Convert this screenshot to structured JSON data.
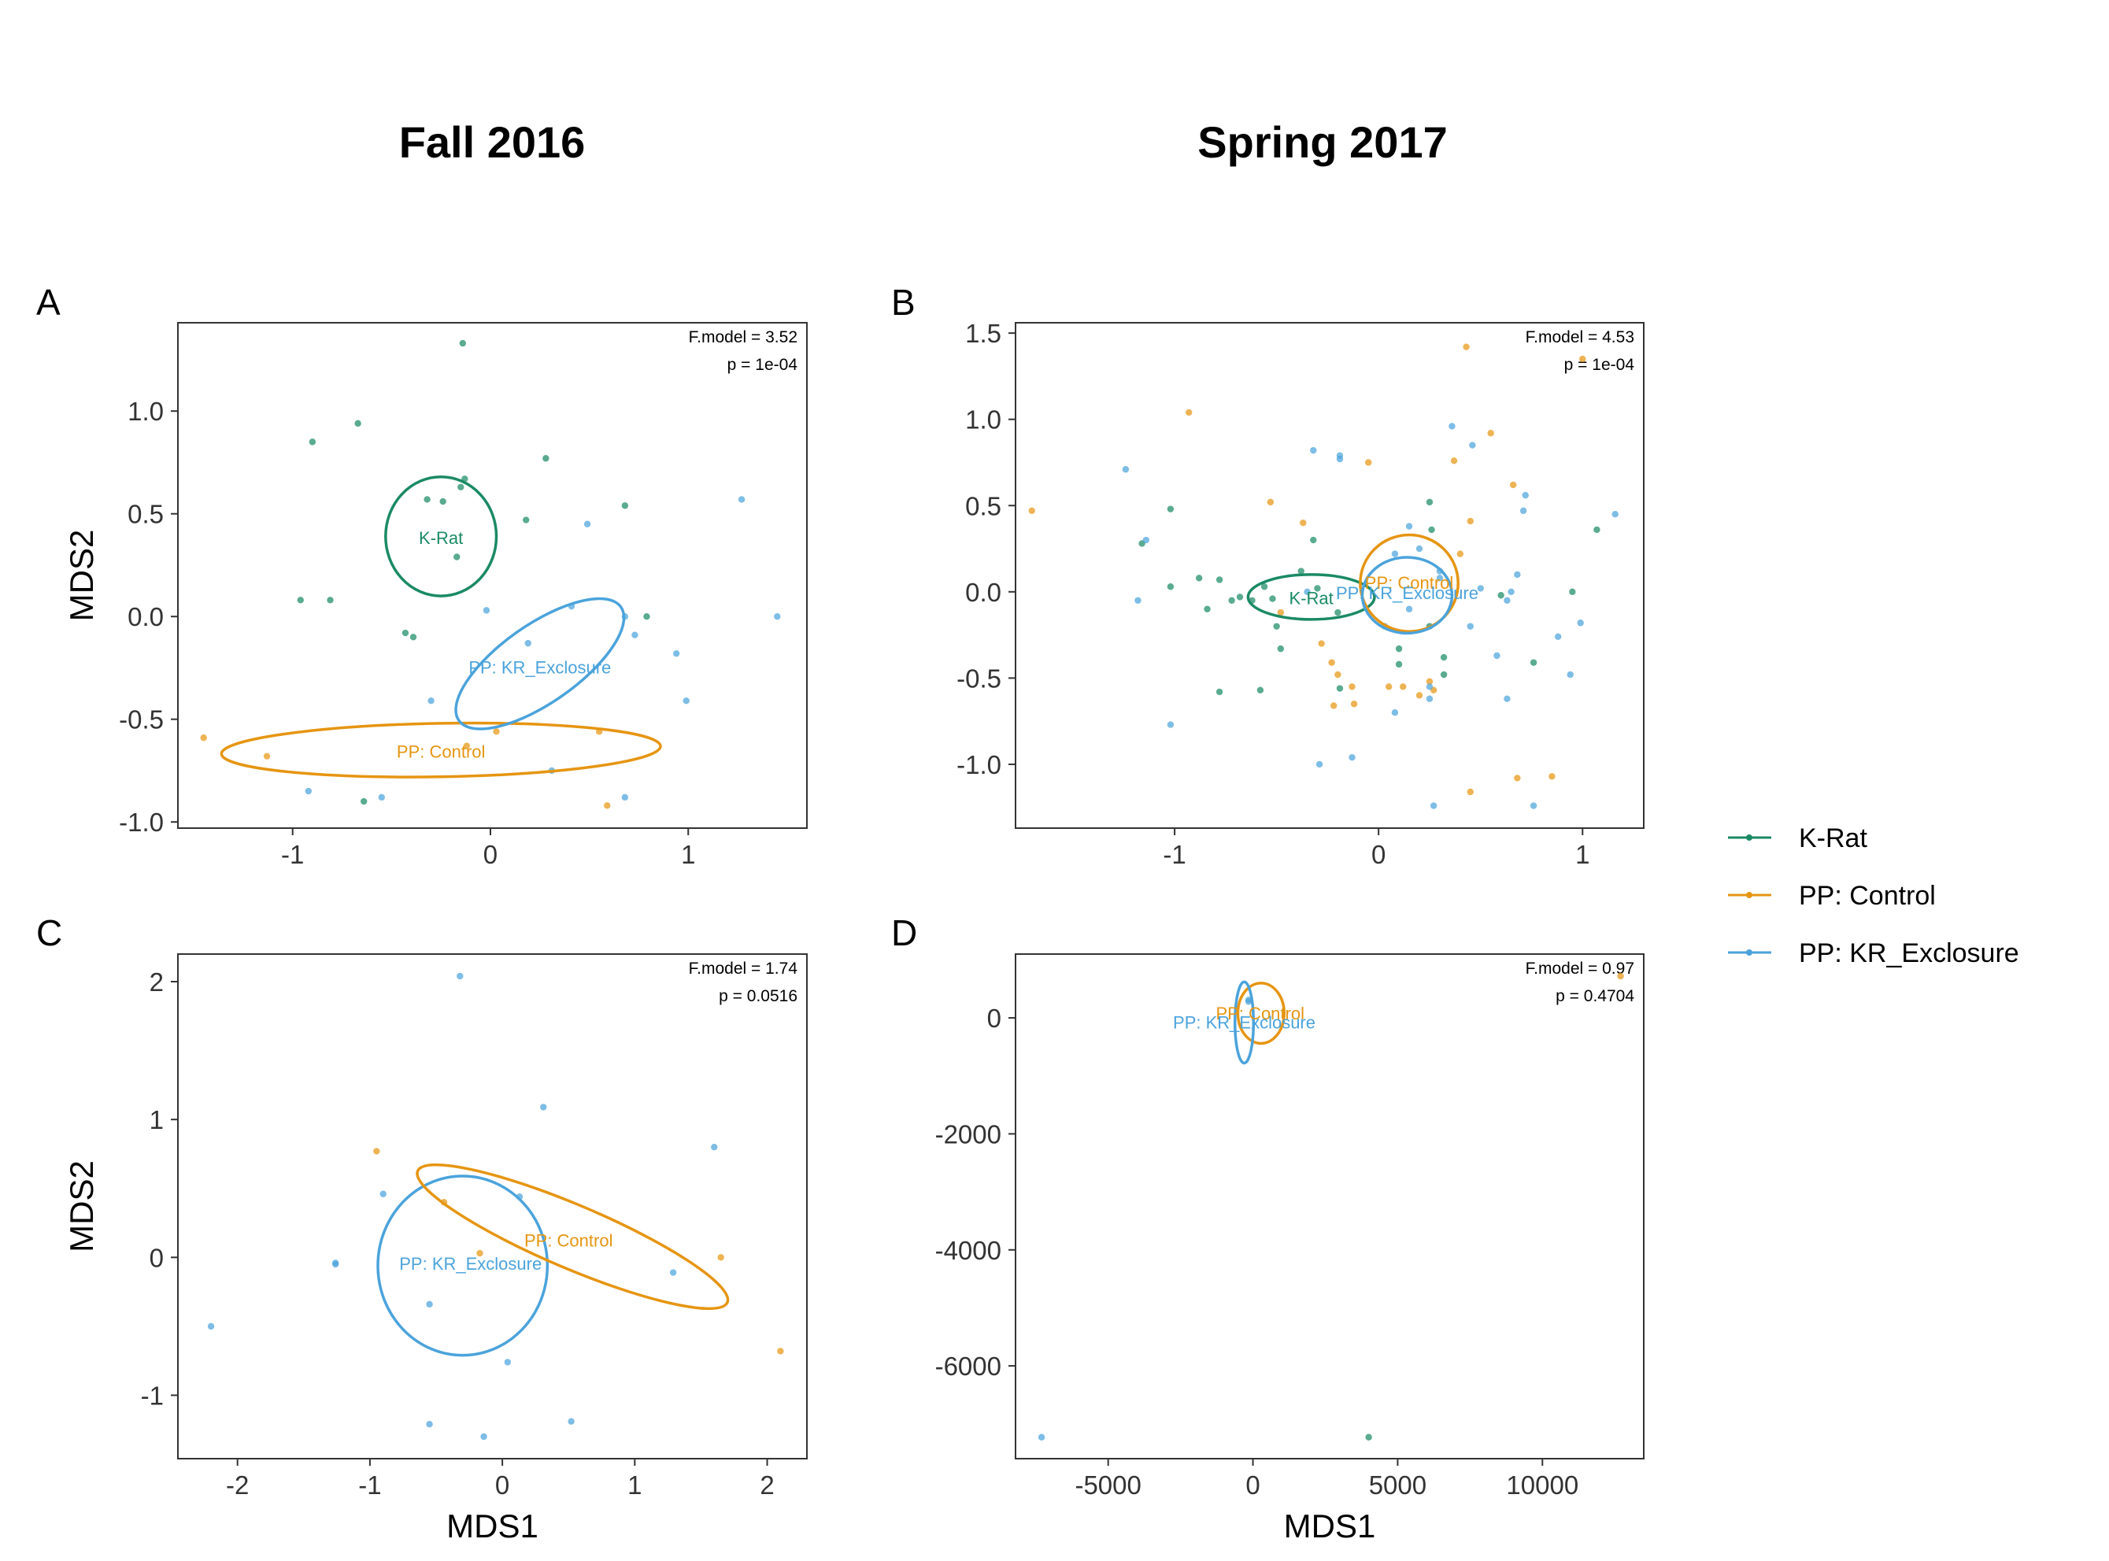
{
  "figure": {
    "column_titles": [
      "Fall 2016",
      "Spring 2017"
    ],
    "colors": {
      "K-Rat": "#1b8a64",
      "PP: Control": "#e69512",
      "PP: KR_Exclosure": "#4ba3dc"
    },
    "legend": [
      "K-Rat",
      "PP: Control",
      "PP: KR_Exclosure"
    ]
  },
  "chart_data": [
    {
      "panel": "A",
      "type": "scatter",
      "column": 0,
      "row": 0,
      "xlabel": "",
      "ylabel": "MDS2",
      "xlim": [
        -1.58,
        1.6
      ],
      "ylim": [
        -1.03,
        1.43
      ],
      "xticks": [
        -1,
        0,
        1
      ],
      "xtick_labels": [
        "-1",
        "0",
        "1"
      ],
      "yticks": [
        -1.0,
        -0.5,
        0.0,
        0.5,
        1.0
      ],
      "ytick_labels": [
        "-1.0",
        "-0.5",
        "0.0",
        "0.5",
        "1.0"
      ],
      "stats": [
        "F.model =  3.52",
        "p =  1e-04"
      ],
      "series": [
        {
          "name": "K-Rat",
          "points": [
            [
              -0.14,
              1.33
            ],
            [
              -0.9,
              0.85
            ],
            [
              -0.67,
              0.94
            ],
            [
              0.28,
              0.77
            ],
            [
              -0.15,
              0.63
            ],
            [
              -0.13,
              0.67
            ],
            [
              -0.32,
              0.57
            ],
            [
              -0.24,
              0.56
            ],
            [
              0.18,
              0.47
            ],
            [
              0.68,
              0.54
            ],
            [
              -0.17,
              0.29
            ],
            [
              -0.96,
              0.08
            ],
            [
              -0.81,
              0.08
            ],
            [
              -0.43,
              -0.08
            ],
            [
              -0.39,
              -0.1
            ],
            [
              0.79,
              0.0
            ],
            [
              -0.64,
              -0.9
            ]
          ]
        },
        {
          "name": "PP: Control",
          "points": [
            [
              -1.45,
              -0.59
            ],
            [
              -1.13,
              -0.68
            ],
            [
              -0.12,
              -0.63
            ],
            [
              0.03,
              -0.56
            ],
            [
              0.55,
              -0.56
            ],
            [
              0.59,
              -0.92
            ]
          ]
        },
        {
          "name": "PP: KR_Exclosure",
          "points": [
            [
              1.27,
              0.57
            ],
            [
              0.49,
              0.45
            ],
            [
              -0.02,
              0.03
            ],
            [
              0.41,
              0.05
            ],
            [
              0.68,
              0.0
            ],
            [
              0.73,
              -0.09
            ],
            [
              1.45,
              0.0
            ],
            [
              0.19,
              -0.13
            ],
            [
              0.94,
              -0.18
            ],
            [
              0.99,
              -0.41
            ],
            [
              -0.3,
              -0.41
            ],
            [
              0.31,
              -0.75
            ],
            [
              0.68,
              -0.88
            ],
            [
              -0.92,
              -0.85
            ],
            [
              -0.55,
              -0.88
            ]
          ]
        }
      ],
      "ellipses": [
        {
          "group": "K-Rat",
          "cx": -0.25,
          "cy": 0.39,
          "rx": 0.28,
          "ry": 0.29,
          "angle": 0,
          "label": "K-Rat",
          "label_at": [
            -0.25,
            0.38
          ]
        },
        {
          "group": "PP: Control",
          "cx": -0.25,
          "cy": -0.65,
          "rx": 1.11,
          "ry": 0.13,
          "angle": -1,
          "label": "PP: Control",
          "label_at": [
            -0.25,
            -0.66
          ]
        },
        {
          "group": "PP: KR_Exclosure",
          "cx": 0.25,
          "cy": -0.23,
          "rx": 0.5,
          "ry": 0.19,
          "angle": -35,
          "label": "PP: KR_Exclosure",
          "label_at": [
            0.25,
            -0.25
          ]
        }
      ]
    },
    {
      "panel": "B",
      "type": "scatter",
      "column": 1,
      "row": 0,
      "xlabel": "",
      "ylabel": "",
      "xlim": [
        -1.78,
        1.3
      ],
      "ylim": [
        -1.37,
        1.56
      ],
      "xticks": [
        -1,
        0,
        1
      ],
      "xtick_labels": [
        "-1",
        "0",
        "1"
      ],
      "yticks": [
        -1.0,
        -0.5,
        0.0,
        0.5,
        1.0,
        1.5
      ],
      "ytick_labels": [
        "-1.0",
        "-0.5",
        "0.0",
        "0.5",
        "1.0",
        "1.5"
      ],
      "stats": [
        "F.model =  4.53",
        "p =  1e-04"
      ],
      "series": [
        {
          "name": "K-Rat",
          "points": [
            [
              -1.02,
              0.48
            ],
            [
              -1.16,
              0.28
            ],
            [
              -1.02,
              0.03
            ],
            [
              -0.88,
              0.08
            ],
            [
              -0.84,
              -0.1
            ],
            [
              -0.78,
              0.07
            ],
            [
              -0.72,
              -0.05
            ],
            [
              -0.68,
              -0.03
            ],
            [
              -0.62,
              -0.05
            ],
            [
              -0.56,
              0.03
            ],
            [
              -0.52,
              -0.04
            ],
            [
              -0.5,
              -0.2
            ],
            [
              -0.48,
              -0.33
            ],
            [
              -0.38,
              0.12
            ],
            [
              -0.32,
              0.3
            ],
            [
              -0.3,
              0.02
            ],
            [
              -0.2,
              -0.12
            ],
            [
              -0.19,
              -0.56
            ],
            [
              -0.78,
              -0.58
            ],
            [
              -0.58,
              -0.57
            ],
            [
              0.25,
              0.52
            ],
            [
              0.25,
              -0.2
            ],
            [
              0.1,
              -0.33
            ],
            [
              0.1,
              -0.42
            ],
            [
              0.32,
              -0.38
            ],
            [
              0.32,
              -0.48
            ],
            [
              0.6,
              -0.02
            ],
            [
              0.76,
              -0.41
            ],
            [
              0.95,
              0.0
            ],
            [
              1.07,
              0.36
            ],
            [
              0.26,
              0.36
            ]
          ]
        },
        {
          "name": "PP: Control",
          "points": [
            [
              -1.7,
              0.47
            ],
            [
              -0.93,
              1.04
            ],
            [
              -0.53,
              0.52
            ],
            [
              -0.37,
              0.4
            ],
            [
              -0.48,
              -0.12
            ],
            [
              -0.28,
              -0.3
            ],
            [
              -0.23,
              -0.41
            ],
            [
              -0.2,
              -0.48
            ],
            [
              -0.22,
              -0.66
            ],
            [
              -0.13,
              -0.55
            ],
            [
              -0.12,
              -0.65
            ],
            [
              -0.05,
              0.75
            ],
            [
              0.05,
              -0.55
            ],
            [
              0.12,
              -0.55
            ],
            [
              0.2,
              -0.6
            ],
            [
              0.25,
              -0.52
            ],
            [
              0.27,
              -0.57
            ],
            [
              0.37,
              0.76
            ],
            [
              0.4,
              0.22
            ],
            [
              0.43,
              1.42
            ],
            [
              0.45,
              0.41
            ],
            [
              0.45,
              -1.16
            ],
            [
              0.55,
              0.92
            ],
            [
              0.66,
              0.62
            ],
            [
              0.68,
              -1.08
            ],
            [
              0.85,
              -1.07
            ],
            [
              1.0,
              1.35
            ]
          ]
        },
        {
          "name": "PP: KR_Exclosure",
          "points": [
            [
              -1.24,
              0.71
            ],
            [
              -1.18,
              -0.05
            ],
            [
              -1.14,
              0.3
            ],
            [
              -1.02,
              -0.77
            ],
            [
              -0.32,
              0.82
            ],
            [
              -0.19,
              0.79
            ],
            [
              -0.19,
              0.77
            ],
            [
              -0.29,
              -1.0
            ],
            [
              -0.13,
              -0.96
            ],
            [
              0.08,
              -0.7
            ],
            [
              0.25,
              -0.55
            ],
            [
              0.25,
              -0.62
            ],
            [
              0.36,
              0.96
            ],
            [
              0.46,
              0.85
            ],
            [
              0.15,
              0.38
            ],
            [
              0.2,
              0.25
            ],
            [
              0.3,
              0.08
            ],
            [
              0.3,
              0.12
            ],
            [
              0.5,
              0.02
            ],
            [
              0.65,
              0.0
            ],
            [
              0.63,
              -0.05
            ],
            [
              0.58,
              -0.37
            ],
            [
              0.63,
              -0.62
            ],
            [
              0.68,
              0.1
            ],
            [
              0.72,
              0.56
            ],
            [
              0.71,
              0.47
            ],
            [
              0.88,
              -0.26
            ],
            [
              0.94,
              -0.48
            ],
            [
              0.99,
              -0.18
            ],
            [
              0.76,
              -1.24
            ],
            [
              1.16,
              0.45
            ],
            [
              0.27,
              -1.24
            ],
            [
              0.03,
              -0.2
            ],
            [
              0.08,
              0.22
            ],
            [
              -0.35,
              0.0
            ],
            [
              0.45,
              -0.2
            ],
            [
              0.15,
              -0.1
            ]
          ]
        }
      ],
      "ellipses": [
        {
          "group": "K-Rat",
          "cx": -0.33,
          "cy": -0.03,
          "rx": 0.31,
          "ry": 0.13,
          "angle": 0,
          "label": "K-Rat",
          "label_at": [
            -0.33,
            -0.04
          ]
        },
        {
          "group": "PP: Control",
          "cx": 0.15,
          "cy": 0.05,
          "rx": 0.24,
          "ry": 0.28,
          "angle": 0,
          "label": "PP: Control",
          "label_at": [
            0.15,
            0.05
          ]
        },
        {
          "group": "PP: KR_Exclosure",
          "cx": 0.14,
          "cy": -0.02,
          "rx": 0.22,
          "ry": 0.22,
          "angle": 0,
          "label": "PP: KR_Exclosure",
          "label_at": [
            0.14,
            -0.01
          ]
        }
      ]
    },
    {
      "panel": "C",
      "type": "scatter",
      "column": 0,
      "row": 1,
      "xlabel": "MDS1",
      "ylabel": "MDS2",
      "xlim": [
        -2.45,
        2.3
      ],
      "ylim": [
        -1.46,
        2.2
      ],
      "xticks": [
        -2,
        -1,
        0,
        1,
        2
      ],
      "xtick_labels": [
        "-2",
        "-1",
        "0",
        "1",
        "2"
      ],
      "yticks": [
        -1,
        0,
        1,
        2
      ],
      "ytick_labels": [
        "-1",
        "0",
        "1",
        "2"
      ],
      "stats": [
        "F.model =  1.74",
        "p =  0.0516"
      ],
      "series": [
        {
          "name": "K-Rat",
          "points": []
        },
        {
          "name": "PP: Control",
          "points": [
            [
              -0.95,
              0.77
            ],
            [
              -0.44,
              0.4
            ],
            [
              -0.17,
              0.03
            ],
            [
              1.65,
              0.0
            ],
            [
              2.1,
              -0.68
            ]
          ]
        },
        {
          "name": "PP: KR_Exclosure",
          "points": [
            [
              -0.32,
              2.04
            ],
            [
              0.31,
              1.09
            ],
            [
              1.6,
              0.8
            ],
            [
              -0.9,
              0.46
            ],
            [
              0.13,
              0.44
            ],
            [
              -1.26,
              -0.04
            ],
            [
              -1.26,
              -0.05
            ],
            [
              1.29,
              -0.11
            ],
            [
              -2.2,
              -0.5
            ],
            [
              -0.55,
              -0.34
            ],
            [
              0.04,
              -0.76
            ],
            [
              -0.55,
              -1.21
            ],
            [
              -0.14,
              -1.3
            ],
            [
              0.52,
              -1.19
            ]
          ]
        }
      ],
      "ellipses": [
        {
          "group": "PP: KR_Exclosure",
          "cx": -0.3,
          "cy": -0.06,
          "rx": 0.64,
          "ry": 0.65,
          "angle": 0,
          "label": "PP: KR_Exclosure",
          "label_at": [
            -0.24,
            -0.05
          ]
        },
        {
          "group": "PP: Control",
          "cx": 0.53,
          "cy": 0.15,
          "rx": 1.27,
          "ry": 0.23,
          "angle": 23,
          "label": "PP: Control",
          "label_at": [
            0.5,
            0.12
          ]
        }
      ]
    },
    {
      "panel": "D",
      "type": "scatter",
      "column": 1,
      "row": 1,
      "xlabel": "MDS1",
      "ylabel": "",
      "xlim": [
        -8200,
        13500
      ],
      "ylim": [
        -7600,
        1100
      ],
      "xticks": [
        -5000,
        0,
        5000,
        10000
      ],
      "xtick_labels": [
        "-5000",
        "0",
        "5000",
        "10000"
      ],
      "yticks": [
        -6000,
        -4000,
        -2000,
        0
      ],
      "ytick_labels": [
        "-6000",
        "-4000",
        "-2000",
        "0"
      ],
      "stats": [
        "F.model =  0.97",
        "p =  0.4704"
      ],
      "series": [
        {
          "name": "K-Rat",
          "points": [
            [
              4000,
              -7230
            ]
          ]
        },
        {
          "name": "PP: Control",
          "points": [
            [
              12700,
              720
            ]
          ]
        },
        {
          "name": "PP: KR_Exclosure",
          "points": [
            [
              -7300,
              -7230
            ],
            [
              -150,
              280
            ],
            [
              -150,
              310
            ]
          ]
        }
      ],
      "ellipses": [
        {
          "group": "PP: Control",
          "cx": 280,
          "cy": 80,
          "rx": 800,
          "ry": 520,
          "angle": 0,
          "label": "PP: Control",
          "label_at": [
            250,
            70
          ]
        },
        {
          "group": "PP: KR_Exclosure",
          "cx": -300,
          "cy": -80,
          "rx": 320,
          "ry": 700,
          "angle": 0,
          "label": "PP: KR_Exclosure",
          "label_at": [
            -300,
            -90
          ]
        }
      ]
    }
  ]
}
